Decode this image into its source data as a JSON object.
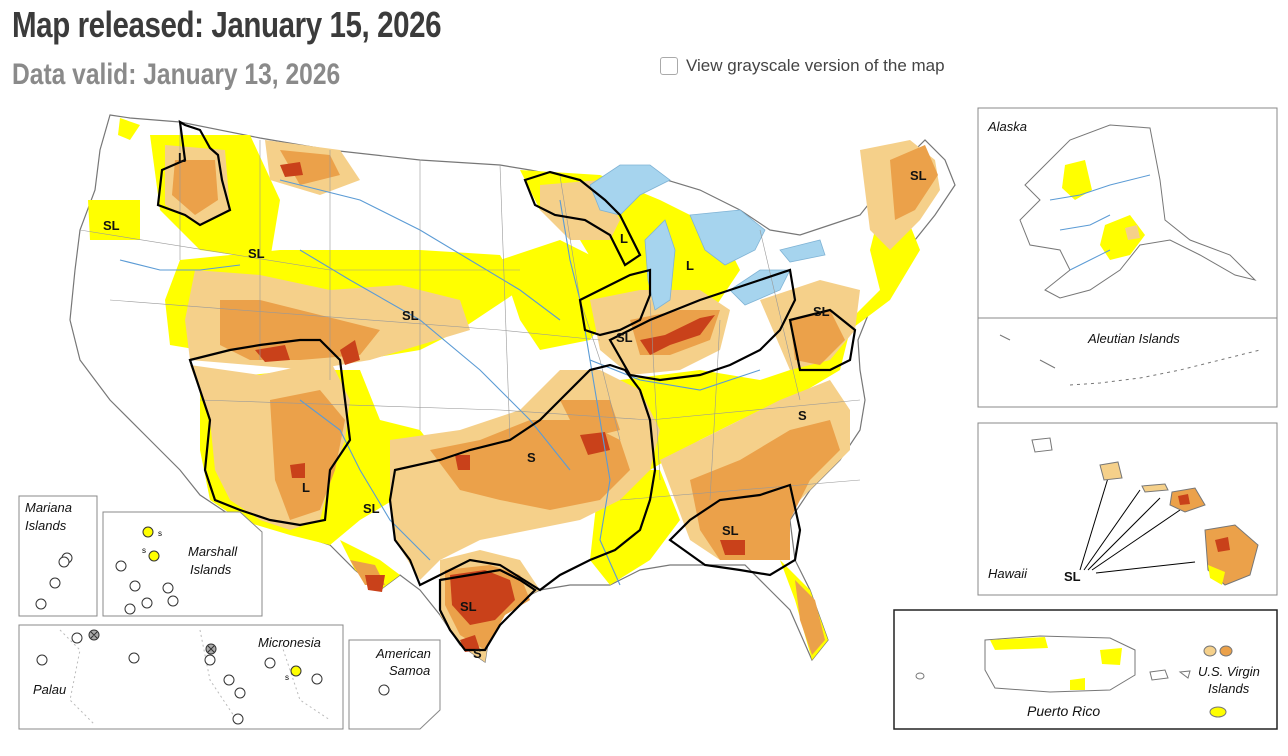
{
  "header": {
    "title": "Map released: January 15, 2026",
    "subtitle": "Data valid: January 13, 2026",
    "grayscale_toggle_label": "View grayscale version of the map",
    "grayscale_checked": false
  },
  "colors": {
    "D0": "#ffff00",
    "D1": "#fcd37f",
    "D2": "#ffaa00",
    "D3": "#e60000",
    "D1_map": "#f5d08a",
    "D2_map": "#eba14a",
    "D3_map": "#c9411a",
    "water": "#a6d4ee",
    "river": "#5b9bd5",
    "border": "#999999",
    "impact_line": "#000000"
  },
  "impact_labels": {
    "idaho_panhandle": "L",
    "oregon": "SL",
    "idaho": "SL",
    "wyoming": "SL",
    "four_corners": "L",
    "west_texas": "SL",
    "south_plains": "S",
    "south_texas": "SL",
    "texas_tip": "S",
    "wisconsin": "L",
    "michigan": "L",
    "ohio_valley": "SL",
    "mid_atlantic": "SL",
    "carolinas": "S",
    "georgia": "SL",
    "new_england": "SL"
  },
  "insets": {
    "alaska": {
      "title": "Alaska"
    },
    "aleutians": {
      "title": "Aleutian Islands"
    },
    "hawaii": {
      "title": "Hawaii",
      "label": "SL"
    },
    "puerto_rico": {
      "title": "Puerto Rico"
    },
    "virgin_islands": {
      "title": "U.S. Virgin\nIslands",
      "line1": "U.S. Virgin",
      "line2": "Islands"
    },
    "mariana": {
      "line1": "Mariana",
      "line2": "Islands"
    },
    "marshall": {
      "line1": "Marshall",
      "line2": "Islands",
      "marker1": "s",
      "marker2": "s"
    },
    "micronesia": {
      "title": "Micronesia",
      "marker": "s"
    },
    "palau": {
      "title": "Palau"
    },
    "samoa": {
      "line1": "American",
      "line2": "Samoa"
    }
  }
}
